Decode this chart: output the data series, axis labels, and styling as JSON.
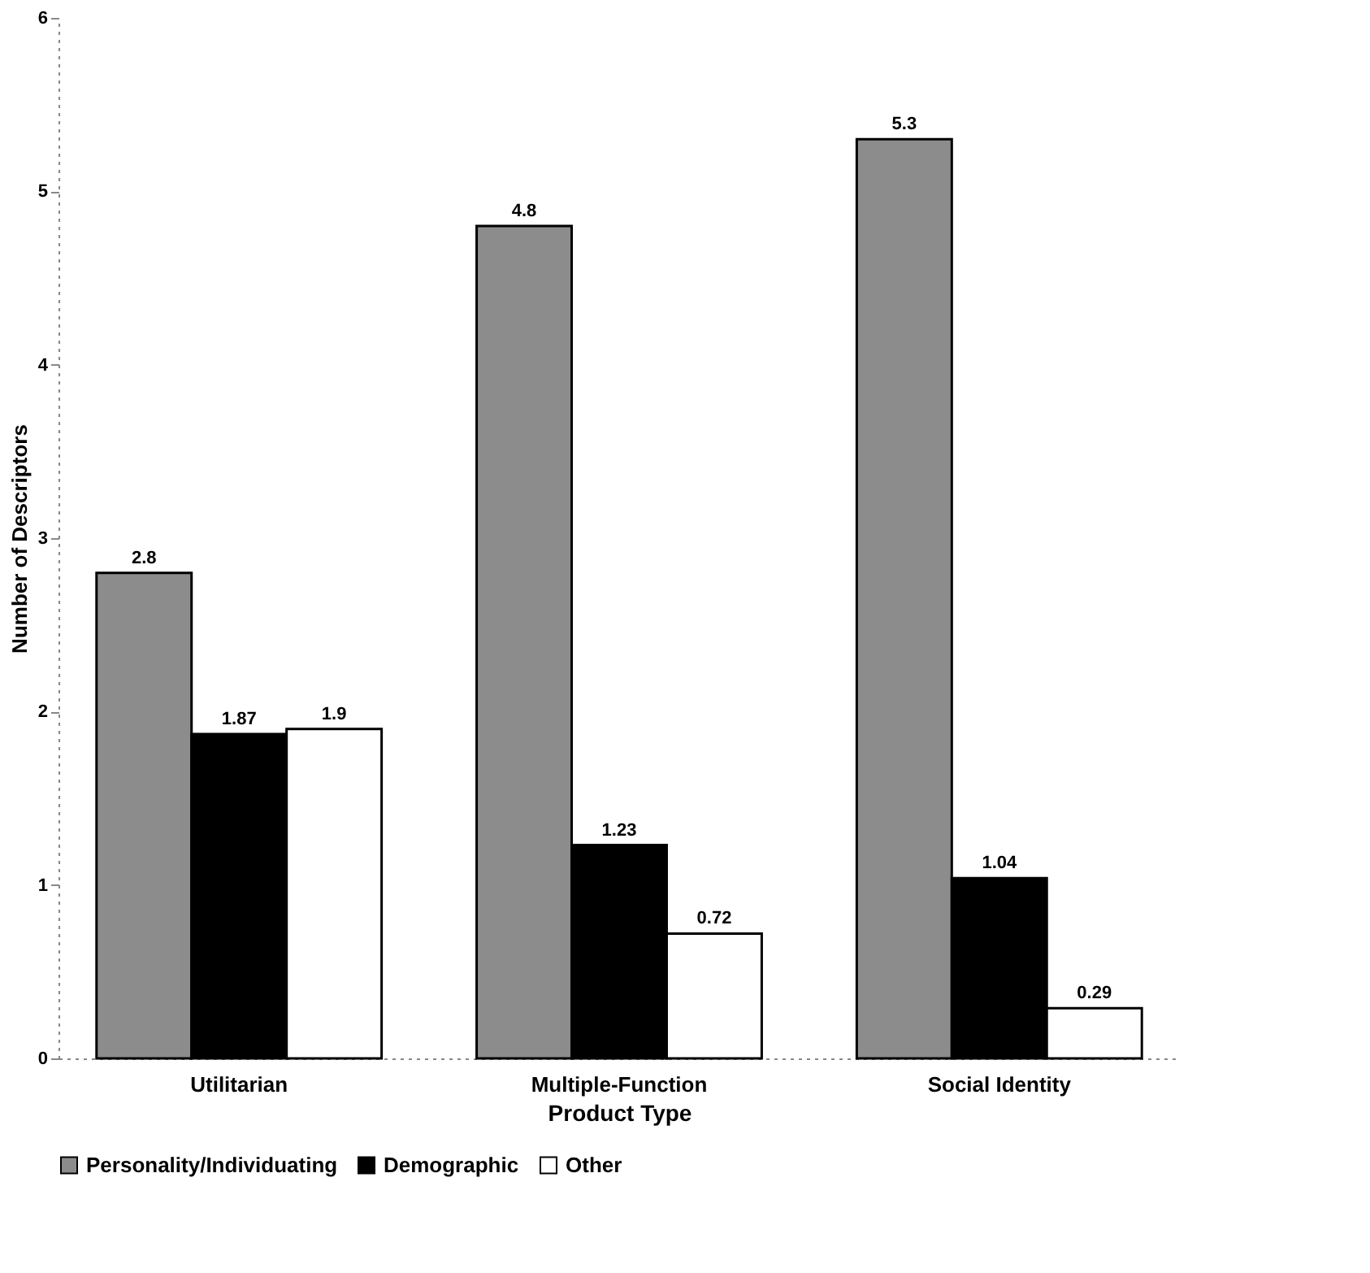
{
  "chart_data": {
    "type": "bar",
    "xlabel": "Product Type",
    "ylabel": "Number of Descriptors",
    "categories": [
      "Utilitarian",
      "Multiple-Function",
      "Social Identity"
    ],
    "series": [
      {
        "name": "Personality/Individuating",
        "color": "#8c8c8c",
        "values": [
          2.8,
          4.8,
          5.3
        ]
      },
      {
        "name": "Demographic",
        "color": "#000000",
        "values": [
          1.87,
          1.23,
          1.04
        ]
      },
      {
        "name": "Other",
        "color": "#ffffff",
        "values": [
          1.9,
          0.72,
          0.29
        ]
      }
    ],
    "ylim": [
      0,
      6
    ],
    "yticks": [
      0,
      1,
      2,
      3,
      4,
      5,
      6
    ],
    "grid": false,
    "legend": "bottom",
    "data_labels": true
  }
}
